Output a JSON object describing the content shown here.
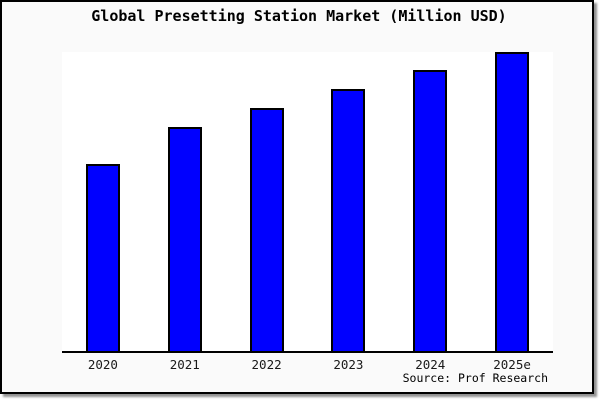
{
  "title": "Global Presetting Station Market (Million USD)",
  "source": "Source: Prof Research",
  "colors": {
    "bar_fill": "#0000ff",
    "bar_border": "#000000",
    "surround_background": "#fafafa",
    "plot_background": "#ffffff",
    "axis": "#000000",
    "frame_border": "#000000"
  },
  "chart_data": {
    "type": "bar",
    "title": "Global Presetting Station Market (Million USD)",
    "categories": [
      "2020",
      "2021",
      "2022",
      "2023",
      "2024",
      "2025e"
    ],
    "values": [
      100,
      120,
      130,
      140,
      150,
      160
    ],
    "value_note": "relative estimates; y-axis unlabeled in source image",
    "xlabel": "",
    "ylabel": "",
    "grid": false,
    "legend": false,
    "caption": "Source: Prof Research"
  }
}
